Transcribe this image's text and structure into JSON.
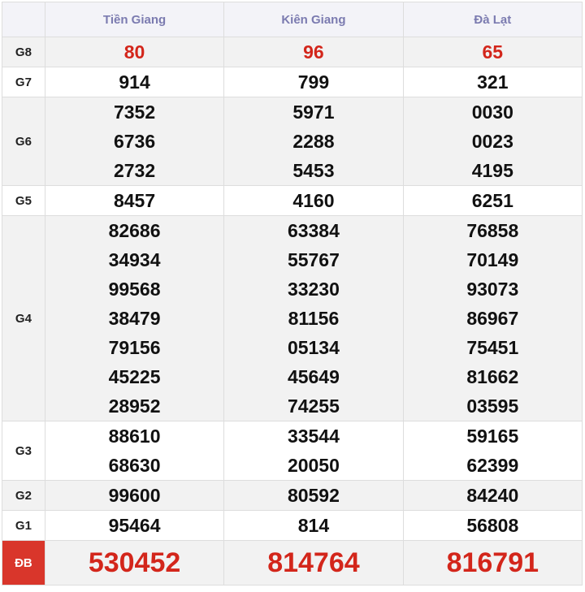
{
  "table": {
    "header": [
      "Tiền Giang",
      "Kiên Giang",
      "Đà Lạt"
    ],
    "rows": [
      {
        "label": "G8",
        "cells": [
          [
            "80"
          ],
          [
            "96"
          ],
          [
            "65"
          ]
        ]
      },
      {
        "label": "G7",
        "cells": [
          [
            "914"
          ],
          [
            "799"
          ],
          [
            "321"
          ]
        ]
      },
      {
        "label": "G6",
        "cells": [
          [
            "7352",
            "6736",
            "2732"
          ],
          [
            "5971",
            "2288",
            "5453"
          ],
          [
            "0030",
            "0023",
            "4195"
          ]
        ]
      },
      {
        "label": "G5",
        "cells": [
          [
            "8457"
          ],
          [
            "4160"
          ],
          [
            "6251"
          ]
        ]
      },
      {
        "label": "G4",
        "cells": [
          [
            "82686",
            "34934",
            "99568",
            "38479",
            "79156",
            "45225",
            "28952"
          ],
          [
            "63384",
            "55767",
            "33230",
            "81156",
            "05134",
            "45649",
            "74255"
          ],
          [
            "76858",
            "70149",
            "93073",
            "86967",
            "75451",
            "81662",
            "03595"
          ]
        ]
      },
      {
        "label": "G3",
        "cells": [
          [
            "88610",
            "68630"
          ],
          [
            "33544",
            "20050"
          ],
          [
            "59165",
            "62399"
          ]
        ]
      },
      {
        "label": "G2",
        "cells": [
          [
            "99600"
          ],
          [
            "80592"
          ],
          [
            "84240"
          ]
        ]
      },
      {
        "label": "G1",
        "cells": [
          [
            "95464"
          ],
          [
            "814"
          ],
          [
            "56808"
          ]
        ]
      },
      {
        "label": "ĐB",
        "cells": [
          [
            "530452"
          ],
          [
            "814764"
          ],
          [
            "816791"
          ]
        ]
      }
    ]
  }
}
